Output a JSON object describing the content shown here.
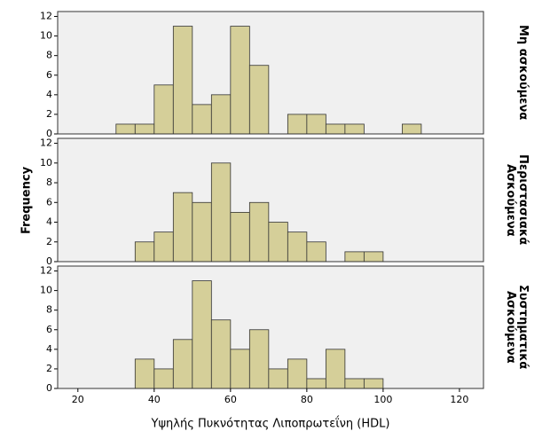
{
  "chart_data": {
    "type": "histogram",
    "x_label": "Υψηλής Πυκνότητας Λιποπρωτεΐνη (HDL)",
    "y_label": "Frequency",
    "bins": [
      30,
      35,
      40,
      45,
      50,
      55,
      60,
      65,
      70,
      75,
      80,
      85,
      90,
      95,
      100,
      105,
      110
    ],
    "series": [
      {
        "name": "Μη ασκούμενα",
        "values": [
          1,
          1,
          5,
          11,
          3,
          4,
          11,
          7,
          0,
          2,
          2,
          1,
          1,
          0,
          0,
          1
        ]
      },
      {
        "name": "Περιστασιακά Ασκούμενα",
        "values": [
          0,
          2,
          3,
          7,
          6,
          10,
          5,
          6,
          4,
          3,
          2,
          0,
          1,
          1,
          0,
          0
        ]
      },
      {
        "name": "Συστηματικά Ασκούμενα",
        "values": [
          0,
          3,
          2,
          5,
          11,
          7,
          4,
          6,
          2,
          3,
          1,
          4,
          1,
          1,
          0,
          0
        ]
      }
    ],
    "color": "#d5cf99",
    "xlim": [
      14.7,
      126.3
    ],
    "xticks": [
      20,
      40,
      60,
      80,
      100,
      120
    ],
    "ylim": [
      0,
      12.5
    ],
    "yticks": [
      0,
      2,
      4,
      6,
      8,
      10,
      12
    ]
  }
}
